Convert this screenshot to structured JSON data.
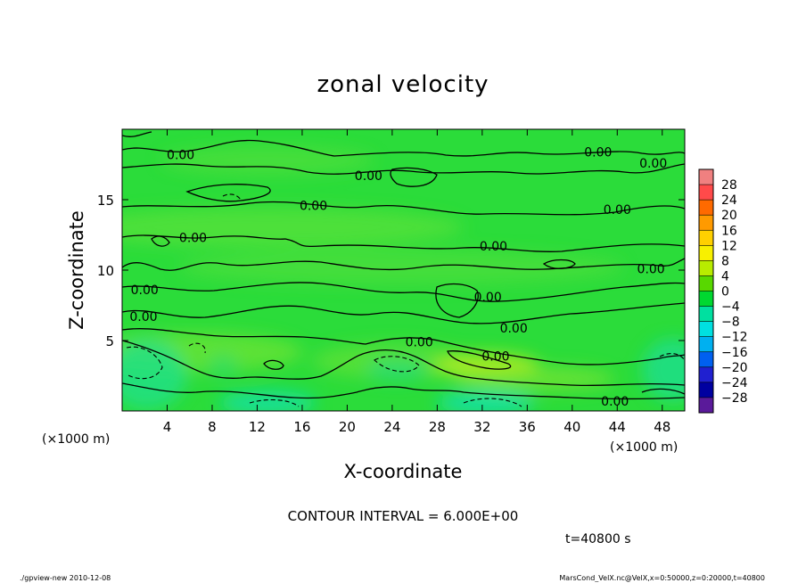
{
  "chart_data": {
    "type": "contour",
    "title": "zonal velocity",
    "xlabel": "X-coordinate",
    "ylabel": "Z-coordinate",
    "x_unit_label": "(×1000 m)",
    "y_unit_label": "(×1000 m)",
    "xlim": [
      0,
      50
    ],
    "ylim": [
      0,
      20
    ],
    "x_ticks": [
      4,
      8,
      12,
      16,
      20,
      24,
      28,
      32,
      36,
      40,
      44,
      48
    ],
    "y_ticks": [
      5,
      10,
      15
    ],
    "contour_interval_text": "CONTOUR INTERVAL = 6.000E+00",
    "time_text": "t=40800 s",
    "colorbar": {
      "levels": [
        28,
        24,
        20,
        16,
        12,
        8,
        4,
        0,
        -4,
        -8,
        -12,
        -16,
        -20,
        -24,
        -28
      ],
      "colors": [
        "#f08080",
        "#ff4a4a",
        "#ff6a00",
        "#ff9a00",
        "#ffd000",
        "#f8f000",
        "#b8ec00",
        "#58d800",
        "#00d830",
        "#00e0a0",
        "#00e0e0",
        "#00b0f0",
        "#0060f0",
        "#2020d0",
        "#0000a0",
        "#5a1a9a"
      ]
    },
    "contour_labels": [
      {
        "text": "0.00",
        "x": 5.2,
        "z": 18.2
      },
      {
        "text": "0.00",
        "x": 21.9,
        "z": 16.7
      },
      {
        "text": "0.00",
        "x": 17.0,
        "z": 14.6
      },
      {
        "text": "0.00",
        "x": 6.3,
        "z": 12.3
      },
      {
        "text": "0.00",
        "x": 42.3,
        "z": 18.4
      },
      {
        "text": "0.00",
        "x": 47.2,
        "z": 17.6
      },
      {
        "text": "0.00",
        "x": 44.0,
        "z": 14.3
      },
      {
        "text": "0.00",
        "x": 33.0,
        "z": 11.7
      },
      {
        "text": "0.00",
        "x": 47.0,
        "z": 10.1
      },
      {
        "text": "0.00",
        "x": 2.0,
        "z": 8.6
      },
      {
        "text": "0.00",
        "x": 32.5,
        "z": 8.1
      },
      {
        "text": "0.00",
        "x": 1.9,
        "z": 6.7
      },
      {
        "text": "0.00",
        "x": 34.8,
        "z": 5.9
      },
      {
        "text": "0.00",
        "x": 26.4,
        "z": 4.9
      },
      {
        "text": "0.00",
        "x": 33.2,
        "z": 3.9
      },
      {
        "text": "0.00",
        "x": 43.8,
        "z": 0.7
      }
    ]
  },
  "footer": {
    "left": "./gpview-new  2010-12-08",
    "right": "MarsCond_VelX.nc@VelX,x=0:50000,z=0:20000,t=40800"
  }
}
